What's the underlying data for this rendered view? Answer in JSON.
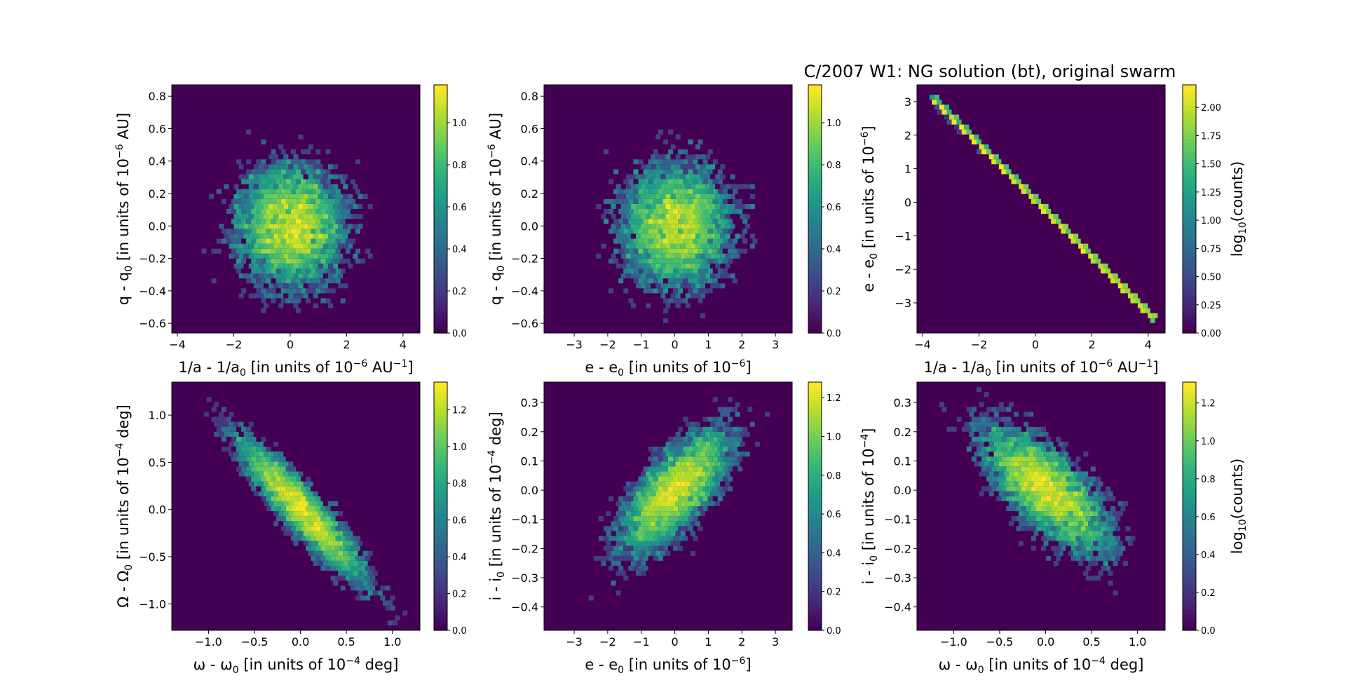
{
  "figure": {
    "title": "C/2007 W1: NG solution (bt), original swarm"
  },
  "chart_data": [
    {
      "type": "heatmap",
      "panel": "top-left",
      "xlabel": "1/a - 1/a0 [in units of 10-6 AU-1]",
      "ylabel": "q - q0 [in units of 10-6 AU]",
      "x_ticks": [
        "−4",
        "−2",
        "0",
        "2",
        "4"
      ],
      "y_ticks": [
        "−0.6",
        "−0.4",
        "−0.2",
        "0.0",
        "0.2",
        "0.4",
        "0.6",
        "0.8"
      ],
      "xlim": [
        -4.2,
        4.6
      ],
      "ylim": [
        -0.66,
        0.87
      ],
      "distribution": {
        "x_center": 0,
        "y_center": 0,
        "x_sd": 1.0,
        "y_sd": 0.2,
        "correlation": 0
      },
      "colorbar": {
        "label": "",
        "range": [
          0,
          1.18
        ],
        "ticks": [
          "0.0",
          "0.2",
          "0.4",
          "0.6",
          "0.8",
          "1.0"
        ]
      },
      "colormap": "viridis"
    },
    {
      "type": "heatmap",
      "panel": "top-middle",
      "xlabel": "e - e0 [in units of 10-6]",
      "ylabel": "q - q0 [in units of 10-6 AU]",
      "x_ticks": [
        "−3",
        "−2",
        "−1",
        "0",
        "1",
        "2",
        "3"
      ],
      "y_ticks": [
        "−0.6",
        "−0.4",
        "−0.2",
        "0.0",
        "0.2",
        "0.4",
        "0.6",
        "0.8"
      ],
      "xlim": [
        -3.9,
        3.5
      ],
      "ylim": [
        -0.66,
        0.87
      ],
      "distribution": {
        "x_center": 0,
        "y_center": 0,
        "x_sd": 0.85,
        "y_sd": 0.2,
        "correlation": 0
      },
      "colorbar": {
        "label": "",
        "range": [
          0,
          1.18
        ],
        "ticks": [
          "0.0",
          "0.2",
          "0.4",
          "0.6",
          "0.8",
          "1.0"
        ]
      },
      "colormap": "viridis"
    },
    {
      "type": "heatmap",
      "panel": "top-right",
      "xlabel": "1/a - 1/a0 [in units of 10-6 AU-1]",
      "ylabel": "e - e0 [in units of 10-6]",
      "x_ticks": [
        "−4",
        "−2",
        "0",
        "2",
        "4"
      ],
      "y_ticks": [
        "−3",
        "−2",
        "−1",
        "0",
        "1",
        "2",
        "3"
      ],
      "xlim": [
        -4.2,
        4.6
      ],
      "ylim": [
        -3.9,
        3.5
      ],
      "distribution": {
        "x_center": 0,
        "y_center": 0,
        "x_sd": 1.0,
        "y_sd": 0.85,
        "correlation": -1,
        "line": {
          "x_from": -3.7,
          "y_from": 3.1,
          "x_to": 4.2,
          "y_to": -3.5
        }
      },
      "colorbar": {
        "label": "log10(counts)",
        "range": [
          0,
          2.2
        ],
        "ticks": [
          "0.00",
          "0.25",
          "0.50",
          "0.75",
          "1.00",
          "1.25",
          "1.50",
          "1.75",
          "2.00"
        ]
      },
      "colormap": "viridis"
    },
    {
      "type": "heatmap",
      "panel": "bottom-left",
      "xlabel": "ω - ω0 [in units of 10-4 deg]",
      "ylabel": "Ω - Ω0 [in units of 10-4 deg]",
      "x_ticks": [
        "−1.0",
        "−0.5",
        "0.0",
        "0.5",
        "1.0"
      ],
      "y_ticks": [
        "−1.0",
        "−0.5",
        "0.0",
        "0.5",
        "1.0"
      ],
      "xlim": [
        -1.4,
        1.3
      ],
      "ylim": [
        -1.28,
        1.35
      ],
      "distribution": {
        "x_center": 0,
        "y_center": 0,
        "x_sd": 0.35,
        "y_sd": 0.38,
        "correlation": -0.92
      },
      "colorbar": {
        "label": "",
        "range": [
          0,
          1.35
        ],
        "ticks": [
          "0.0",
          "0.2",
          "0.4",
          "0.6",
          "0.8",
          "1.0",
          "1.2"
        ]
      },
      "colormap": "viridis"
    },
    {
      "type": "heatmap",
      "panel": "bottom-middle",
      "xlabel": "e - e0 [in units of 10-6]",
      "ylabel": "i - i0 [in units of 10-4 deg]",
      "x_ticks": [
        "−3",
        "−2",
        "−1",
        "0",
        "1",
        "2",
        "3"
      ],
      "y_ticks": [
        "−0.4",
        "−0.3",
        "−0.2",
        "−0.1",
        "0.0",
        "0.1",
        "0.2",
        "0.3"
      ],
      "xlim": [
        -3.9,
        3.5
      ],
      "ylim": [
        -0.48,
        0.37
      ],
      "distribution": {
        "x_center": 0,
        "y_center": 0,
        "x_sd": 0.85,
        "y_sd": 0.11,
        "correlation": 0.72
      },
      "colorbar": {
        "label": "",
        "range": [
          0,
          1.28
        ],
        "ticks": [
          "0.0",
          "0.2",
          "0.4",
          "0.6",
          "0.8",
          "1.0",
          "1.2"
        ]
      },
      "colormap": "viridis"
    },
    {
      "type": "heatmap",
      "panel": "bottom-right",
      "xlabel": "ω - ω0 [in units of 10-4 deg]",
      "ylabel": "i - i0 [in units of 10-4]",
      "x_ticks": [
        "−1.0",
        "−0.5",
        "0.0",
        "0.5",
        "1.0"
      ],
      "y_ticks": [
        "−0.4",
        "−0.3",
        "−0.2",
        "−0.1",
        "0.0",
        "0.1",
        "0.2",
        "0.3"
      ],
      "xlim": [
        -1.4,
        1.3
      ],
      "ylim": [
        -0.48,
        0.37
      ],
      "distribution": {
        "x_center": 0,
        "y_center": 0,
        "x_sd": 0.35,
        "y_sd": 0.11,
        "correlation": -0.7
      },
      "colorbar": {
        "label": "log10(counts)",
        "range": [
          0,
          1.31
        ],
        "ticks": [
          "0.0",
          "0.2",
          "0.4",
          "0.6",
          "0.8",
          "1.0",
          "1.2"
        ]
      },
      "colormap": "viridis"
    }
  ]
}
